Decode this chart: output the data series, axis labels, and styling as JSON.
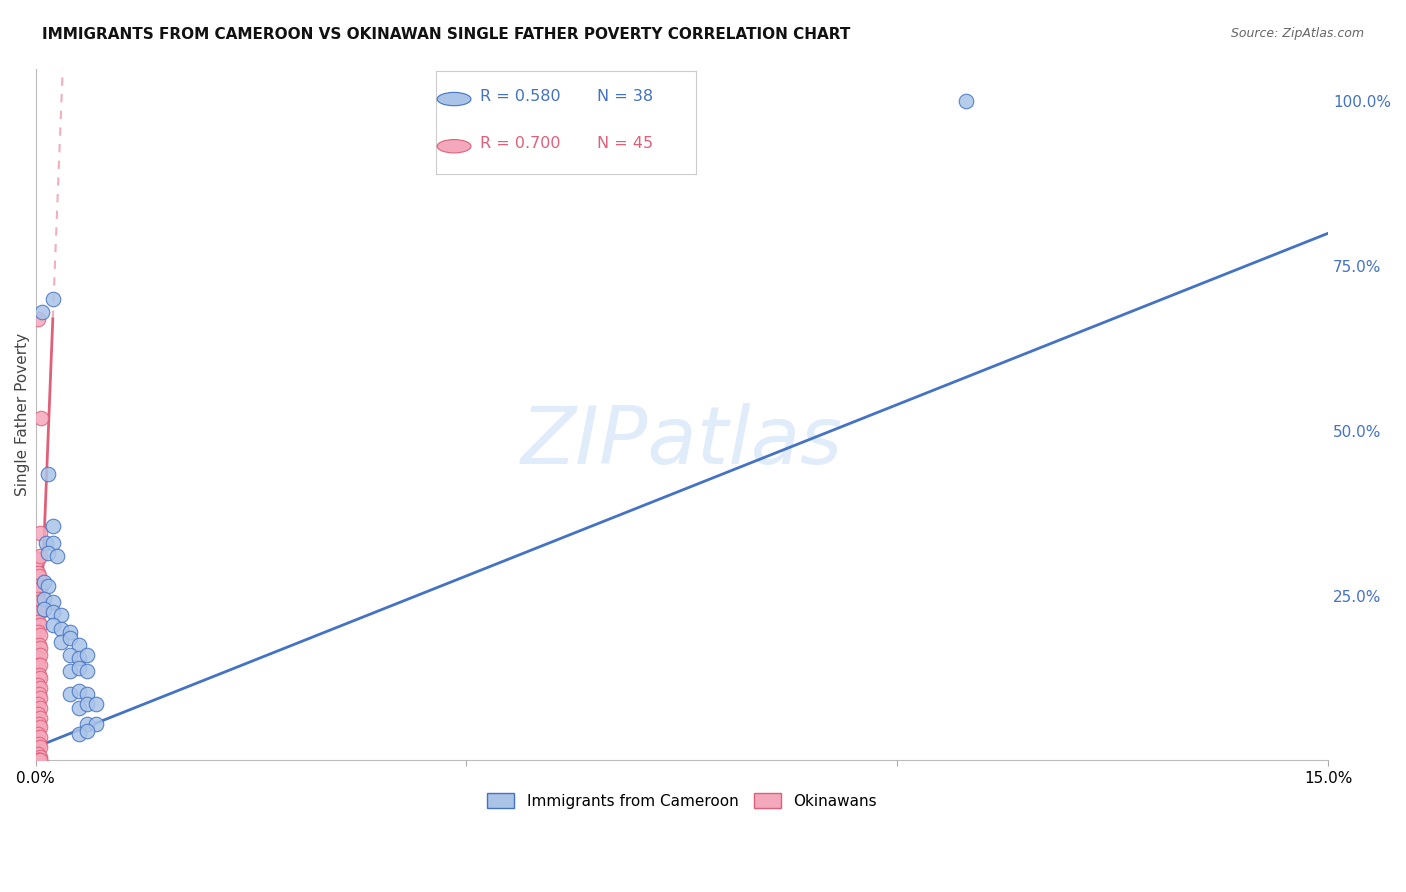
{
  "title": "IMMIGRANTS FROM CAMEROON VS OKINAWAN SINGLE FATHER POVERTY CORRELATION CHART",
  "source": "Source: ZipAtlas.com",
  "ylabel": "Single Father Poverty",
  "y_ticks_right": [
    "100.0%",
    "75.0%",
    "50.0%",
    "25.0%"
  ],
  "legend_blue_r": "R = 0.580",
  "legend_blue_n": "N = 38",
  "legend_pink_r": "R = 0.700",
  "legend_pink_n": "N = 45",
  "legend_label_blue": "Immigrants from Cameroon",
  "legend_label_pink": "Okinawans",
  "watermark": "ZIPatlas",
  "blue_color": "#aac4e8",
  "pink_color": "#f4a8bb",
  "blue_line_color": "#4472c4",
  "pink_line_color": "#e0607a",
  "blue_scatter": [
    [
      0.0008,
      0.68
    ],
    [
      0.108,
      1.0
    ],
    [
      0.002,
      0.7
    ],
    [
      0.0015,
      0.435
    ],
    [
      0.002,
      0.355
    ],
    [
      0.0012,
      0.33
    ],
    [
      0.002,
      0.33
    ],
    [
      0.0015,
      0.315
    ],
    [
      0.0025,
      0.31
    ],
    [
      0.001,
      0.27
    ],
    [
      0.0015,
      0.265
    ],
    [
      0.001,
      0.245
    ],
    [
      0.002,
      0.24
    ],
    [
      0.001,
      0.23
    ],
    [
      0.002,
      0.225
    ],
    [
      0.003,
      0.22
    ],
    [
      0.002,
      0.205
    ],
    [
      0.003,
      0.2
    ],
    [
      0.004,
      0.195
    ],
    [
      0.003,
      0.18
    ],
    [
      0.004,
      0.185
    ],
    [
      0.005,
      0.175
    ],
    [
      0.004,
      0.16
    ],
    [
      0.005,
      0.155
    ],
    [
      0.006,
      0.16
    ],
    [
      0.004,
      0.135
    ],
    [
      0.005,
      0.14
    ],
    [
      0.006,
      0.135
    ],
    [
      0.004,
      0.1
    ],
    [
      0.005,
      0.105
    ],
    [
      0.006,
      0.1
    ],
    [
      0.005,
      0.08
    ],
    [
      0.006,
      0.085
    ],
    [
      0.007,
      0.085
    ],
    [
      0.006,
      0.055
    ],
    [
      0.007,
      0.055
    ],
    [
      0.005,
      0.04
    ],
    [
      0.006,
      0.045
    ]
  ],
  "pink_scatter": [
    [
      0.0003,
      0.67
    ],
    [
      0.0006,
      0.52
    ],
    [
      0.0005,
      0.345
    ],
    [
      0.0003,
      0.305
    ],
    [
      0.0005,
      0.31
    ],
    [
      0.0003,
      0.285
    ],
    [
      0.0004,
      0.28
    ],
    [
      0.0003,
      0.265
    ],
    [
      0.0005,
      0.26
    ],
    [
      0.0003,
      0.245
    ],
    [
      0.0004,
      0.24
    ],
    [
      0.0004,
      0.225
    ],
    [
      0.0005,
      0.225
    ],
    [
      0.0003,
      0.21
    ],
    [
      0.0005,
      0.205
    ],
    [
      0.0003,
      0.195
    ],
    [
      0.0005,
      0.19
    ],
    [
      0.0004,
      0.175
    ],
    [
      0.0005,
      0.17
    ],
    [
      0.0003,
      0.155
    ],
    [
      0.0005,
      0.16
    ],
    [
      0.0003,
      0.145
    ],
    [
      0.0005,
      0.145
    ],
    [
      0.0004,
      0.13
    ],
    [
      0.0005,
      0.125
    ],
    [
      0.0003,
      0.115
    ],
    [
      0.0005,
      0.11
    ],
    [
      0.0004,
      0.1
    ],
    [
      0.0005,
      0.095
    ],
    [
      0.0003,
      0.085
    ],
    [
      0.0005,
      0.08
    ],
    [
      0.0003,
      0.07
    ],
    [
      0.0005,
      0.065
    ],
    [
      0.0004,
      0.055
    ],
    [
      0.0005,
      0.05
    ],
    [
      0.0003,
      0.04
    ],
    [
      0.0005,
      0.035
    ],
    [
      0.0004,
      0.025
    ],
    [
      0.0005,
      0.02
    ],
    [
      0.0003,
      0.01
    ],
    [
      0.0005,
      0.005
    ],
    [
      0.0003,
      0.0
    ],
    [
      0.0005,
      0.0
    ],
    [
      0.0003,
      0.0
    ],
    [
      0.0005,
      0.0
    ]
  ],
  "xlim": [
    0.0,
    0.15
  ],
  "ylim": [
    0.0,
    1.05
  ],
  "background_color": "#ffffff",
  "grid_color": "#cccccc"
}
